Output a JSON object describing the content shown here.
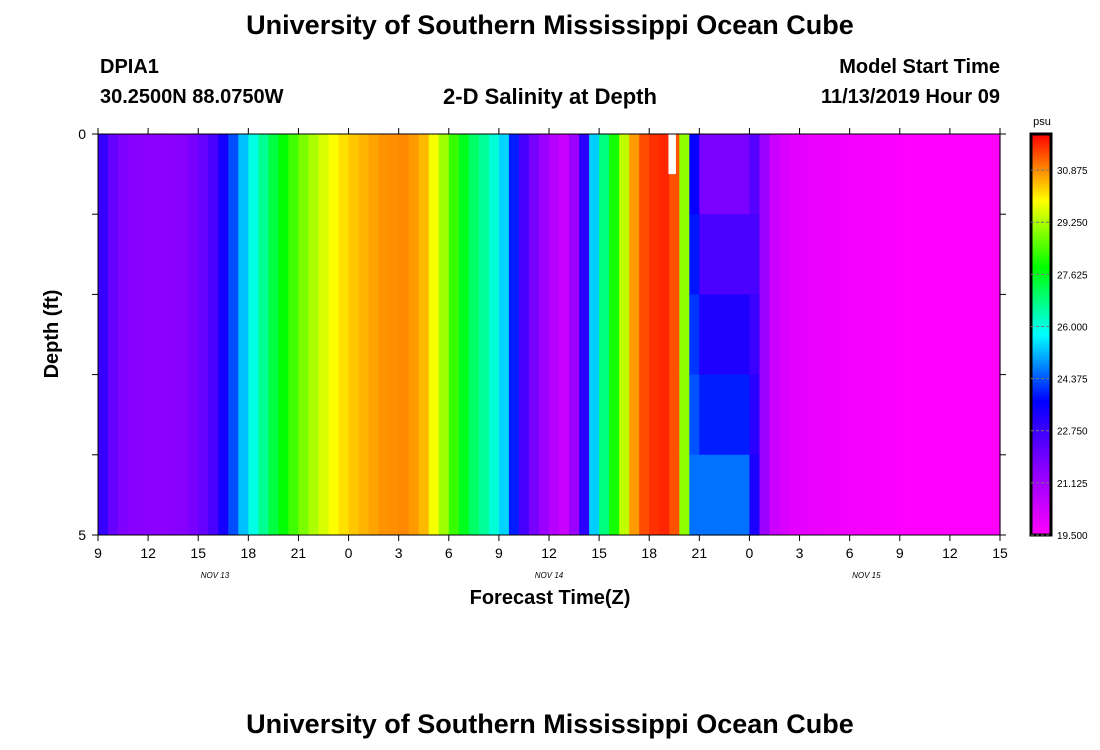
{
  "header": {
    "title_top": "University of Southern Mississippi Ocean Cube",
    "station_id": "DPIA1",
    "station_coords": "30.2500N 88.0750W",
    "plot_title": "2-D Salinity at Depth",
    "model_start_label": "Model Start Time",
    "model_start_value": "11/13/2019 Hour 09"
  },
  "footer": {
    "title_bottom": "University of Southern Mississippi Ocean Cube"
  },
  "chart_data": {
    "type": "heatmap",
    "title": "2-D Salinity at Depth",
    "xlabel": "Forecast Time(Z)",
    "ylabel": "Depth (ft)",
    "x_ticks": [
      "9",
      "12",
      "15",
      "18",
      "21",
      "0",
      "3",
      "6",
      "9",
      "12",
      "15",
      "18",
      "21",
      "0",
      "3",
      "6",
      "9",
      "12",
      "15"
    ],
    "x_start_hours": 9,
    "x_end_hours": 63,
    "date_labels": [
      {
        "label": "NOV 13",
        "hour": 16
      },
      {
        "label": "NOV 14",
        "hour": 36
      },
      {
        "label": "NOV 15",
        "hour": 55
      }
    ],
    "y_ticks": [
      "0",
      "5"
    ],
    "ylim": [
      0,
      5
    ],
    "colorbar": {
      "unit": "psu",
      "ticks": [
        "30.875",
        "29.250",
        "27.625",
        "26.000",
        "24.375",
        "22.750",
        "21.125",
        "19.500"
      ],
      "min": 19.5,
      "max": 32.0
    },
    "time_step_hours": 0.6,
    "depth_levels": 5,
    "salinity_vs_time": [
      [
        9,
        23.3
      ],
      [
        9.6,
        22.4
      ],
      [
        10.2,
        21.8
      ],
      [
        10.8,
        21.6
      ],
      [
        12.5,
        21.5
      ],
      [
        14.0,
        21.6
      ],
      [
        15.0,
        21.9
      ],
      [
        16.0,
        22.6
      ],
      [
        16.8,
        23.8
      ],
      [
        17.5,
        25.0
      ],
      [
        18.5,
        26.2
      ],
      [
        19.5,
        27.3
      ],
      [
        20.5,
        28.2
      ],
      [
        21.5,
        29.0
      ],
      [
        22.5,
        29.6
      ],
      [
        24.0,
        30.3
      ],
      [
        26.0,
        30.8
      ],
      [
        27.5,
        30.9
      ],
      [
        28.5,
        30.5
      ],
      [
        29.5,
        29.4
      ],
      [
        30.5,
        28.0
      ],
      [
        31.5,
        27.0
      ],
      [
        32.5,
        26.3
      ],
      [
        33.3,
        25.4
      ],
      [
        33.9,
        23.9
      ],
      [
        34.5,
        22.6
      ],
      [
        35.3,
        21.6
      ],
      [
        36.2,
        20.8
      ],
      [
        37.0,
        20.4
      ],
      [
        37.6,
        21.4
      ],
      [
        38.1,
        23.0
      ],
      [
        38.6,
        25.1
      ],
      [
        39.1,
        26.4
      ],
      [
        39.6,
        27.4
      ],
      [
        40.0,
        28.2
      ],
      [
        40.5,
        29.4
      ],
      [
        41.0,
        30.6
      ],
      [
        41.5,
        31.3
      ],
      [
        42.5,
        31.7
      ],
      [
        43.3,
        31.7
      ],
      [
        43.8,
        30.8
      ],
      [
        44.2,
        28.4
      ],
      [
        44.5,
        26.2
      ],
      [
        44.9,
        23.0
      ],
      [
        45.4,
        22.5
      ],
      [
        46.2,
        22.9
      ],
      [
        47.0,
        23.4
      ],
      [
        47.8,
        23.5
      ],
      [
        48.3,
        22.6
      ],
      [
        48.8,
        21.5
      ],
      [
        49.2,
        20.5
      ],
      [
        50.5,
        20.0
      ],
      [
        53.0,
        19.8
      ],
      [
        56.0,
        19.6
      ],
      [
        60.0,
        19.4
      ],
      [
        63.0,
        19.3
      ]
    ],
    "transition_segment": {
      "x_start": 44.1,
      "x_end": 48.6,
      "surface_salinity": 21.8,
      "bottom_salinity": 24.6
    },
    "missing_data": {
      "x_start": 43.15,
      "x_end": 43.6,
      "depth_start": 0,
      "depth_end": 0.5
    }
  }
}
